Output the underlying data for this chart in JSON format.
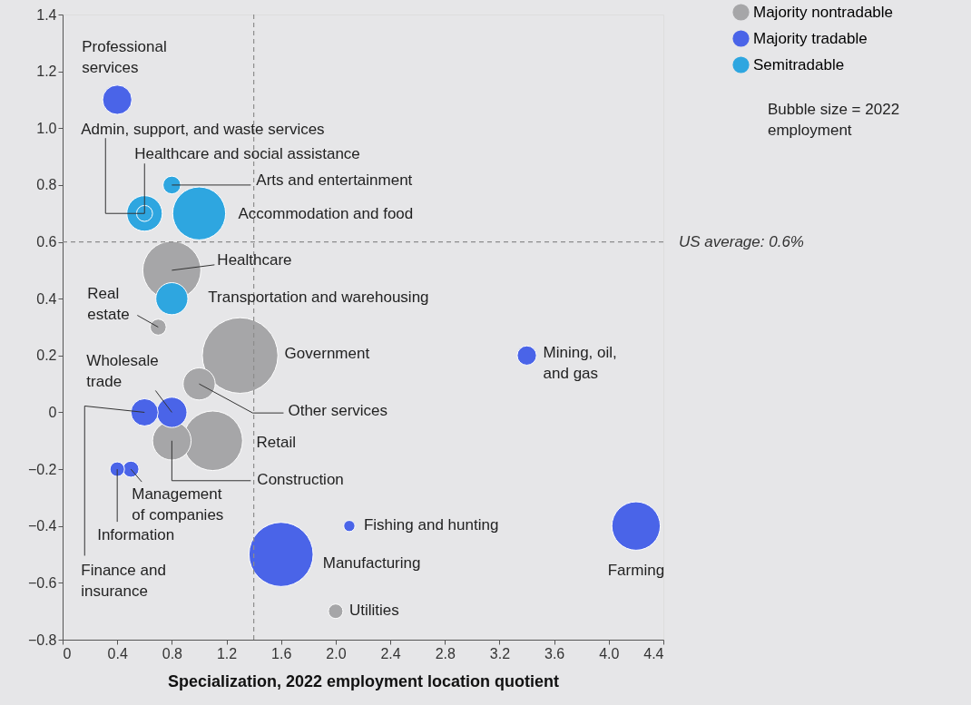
{
  "chart_data": {
    "type": "bubble",
    "xlabel": "Specialization, 2022 employment location quotient",
    "series": [
      {
        "name": "Majority nontradable",
        "color": "#a6a6a8",
        "x": [
          0.8,
          0.7,
          1.3,
          1.0,
          1.1,
          0.8,
          2.0
        ],
        "values": [
          0.5,
          0.3,
          0.2,
          0.1,
          -0.1,
          -0.1,
          -0.7
        ],
        "sizes": [
          0.59,
          0.045,
          1,
          0.18,
          0.62,
          0.26,
          0.037
        ]
      },
      {
        "name": "Majority tradable",
        "color": "#4a64e8",
        "x": [
          0.4,
          0.8,
          0.6,
          0.4,
          0.5,
          2.1,
          1.6,
          4.2,
          3.4
        ],
        "values": [
          1.1,
          0.0,
          0.0,
          -0.2,
          -0.2,
          -0.4,
          -0.5,
          -0.4,
          0.2
        ],
        "sizes": [
          0.15,
          0.16,
          0.13,
          0.037,
          0.045,
          0.022,
          0.72,
          0.41,
          0.065
        ]
      },
      {
        "name": "Semitradable",
        "color": "#2ea6e0",
        "x": [
          0.6,
          0.6,
          0.8,
          1.0,
          0.8
        ],
        "values": [
          0.7,
          0.7,
          0.8,
          0.7,
          0.4
        ],
        "sizes": [
          0.045,
          0.22,
          0.055,
          0.49,
          0.18
        ]
      }
    ],
    "annotations": [
      {
        "text": "Professional\nservices",
        "x": 0.4,
        "y": 1.1
      },
      {
        "text": "Admin, support, and waste services",
        "x": 0.6,
        "y": 0.7
      },
      {
        "text": "Healthcare and social assistance",
        "x": 0.6,
        "y": 0.7
      },
      {
        "text": "Arts and entertainment",
        "x": 0.8,
        "y": 0.8
      },
      {
        "text": "Accommodation and food",
        "x": 1.0,
        "y": 0.7
      },
      {
        "text": "Healthcare",
        "x": 0.8,
        "y": 0.5
      },
      {
        "text": "Transportation and warehousing",
        "x": 0.8,
        "y": 0.4
      },
      {
        "text": "Real\nestate",
        "x": 0.7,
        "y": 0.3
      },
      {
        "text": "Government",
        "x": 1.3,
        "y": 0.2
      },
      {
        "text": "Other services",
        "x": 1.0,
        "y": 0.1
      },
      {
        "text": "Wholesale\ntrade",
        "x": 0.8,
        "y": 0.0
      },
      {
        "text": "Finance and\ninsurance",
        "x": 0.6,
        "y": 0.0
      },
      {
        "text": "Retail",
        "x": 1.1,
        "y": -0.1
      },
      {
        "text": "Construction",
        "x": 0.8,
        "y": -0.1
      },
      {
        "text": "Information",
        "x": 0.4,
        "y": -0.2
      },
      {
        "text": "Management\nof companies",
        "x": 0.5,
        "y": -0.2
      },
      {
        "text": "Fishing and hunting",
        "x": 2.1,
        "y": -0.4
      },
      {
        "text": "Manufacturing",
        "x": 1.6,
        "y": -0.5
      },
      {
        "text": "Farming",
        "x": 4.2,
        "y": -0.4
      },
      {
        "text": "Mining, oil,\nand gas",
        "x": 3.4,
        "y": 0.2
      },
      {
        "text": "Utilities",
        "x": 2.0,
        "y": -0.7
      },
      "Bubble size = 2022\nemployment"
    ],
    "ref_lines": [
      {
        "axis": "x",
        "value": 1.4,
        "color": "#8c8c8c",
        "line_style": "dashed"
      },
      {
        "axis": "y",
        "value": 0.6,
        "label": "US average: 0.6%",
        "color": "#8c8c8c",
        "line_style": "dashed"
      }
    ],
    "xlim": [
      0,
      4.4
    ],
    "ylim": [
      -0.8,
      1.4
    ],
    "xticks": [
      {
        "value": 0,
        "label": "0"
      },
      0.4,
      0.8,
      1.2,
      1.6,
      {
        "value": 2,
        "label": "2.0"
      },
      2.4,
      2.8,
      3.2,
      3.6,
      {
        "value": 4,
        "label": "4.0"
      },
      4.4
    ],
    "yticks": [
      {
        "value": -0.8,
        "label": "−0.8"
      },
      {
        "value": -0.6,
        "label": "−0.6"
      },
      {
        "value": -0.4,
        "label": "−0.4"
      },
      {
        "value": -0.2,
        "label": "−0.2"
      },
      {
        "value": 0,
        "label": "0"
      },
      0.2,
      0.4,
      0.6,
      0.8,
      {
        "value": 1,
        "label": "1.0"
      },
      1.2,
      1.4
    ],
    "grid": false,
    "legend": "top right",
    "marker": "circle"
  }
}
